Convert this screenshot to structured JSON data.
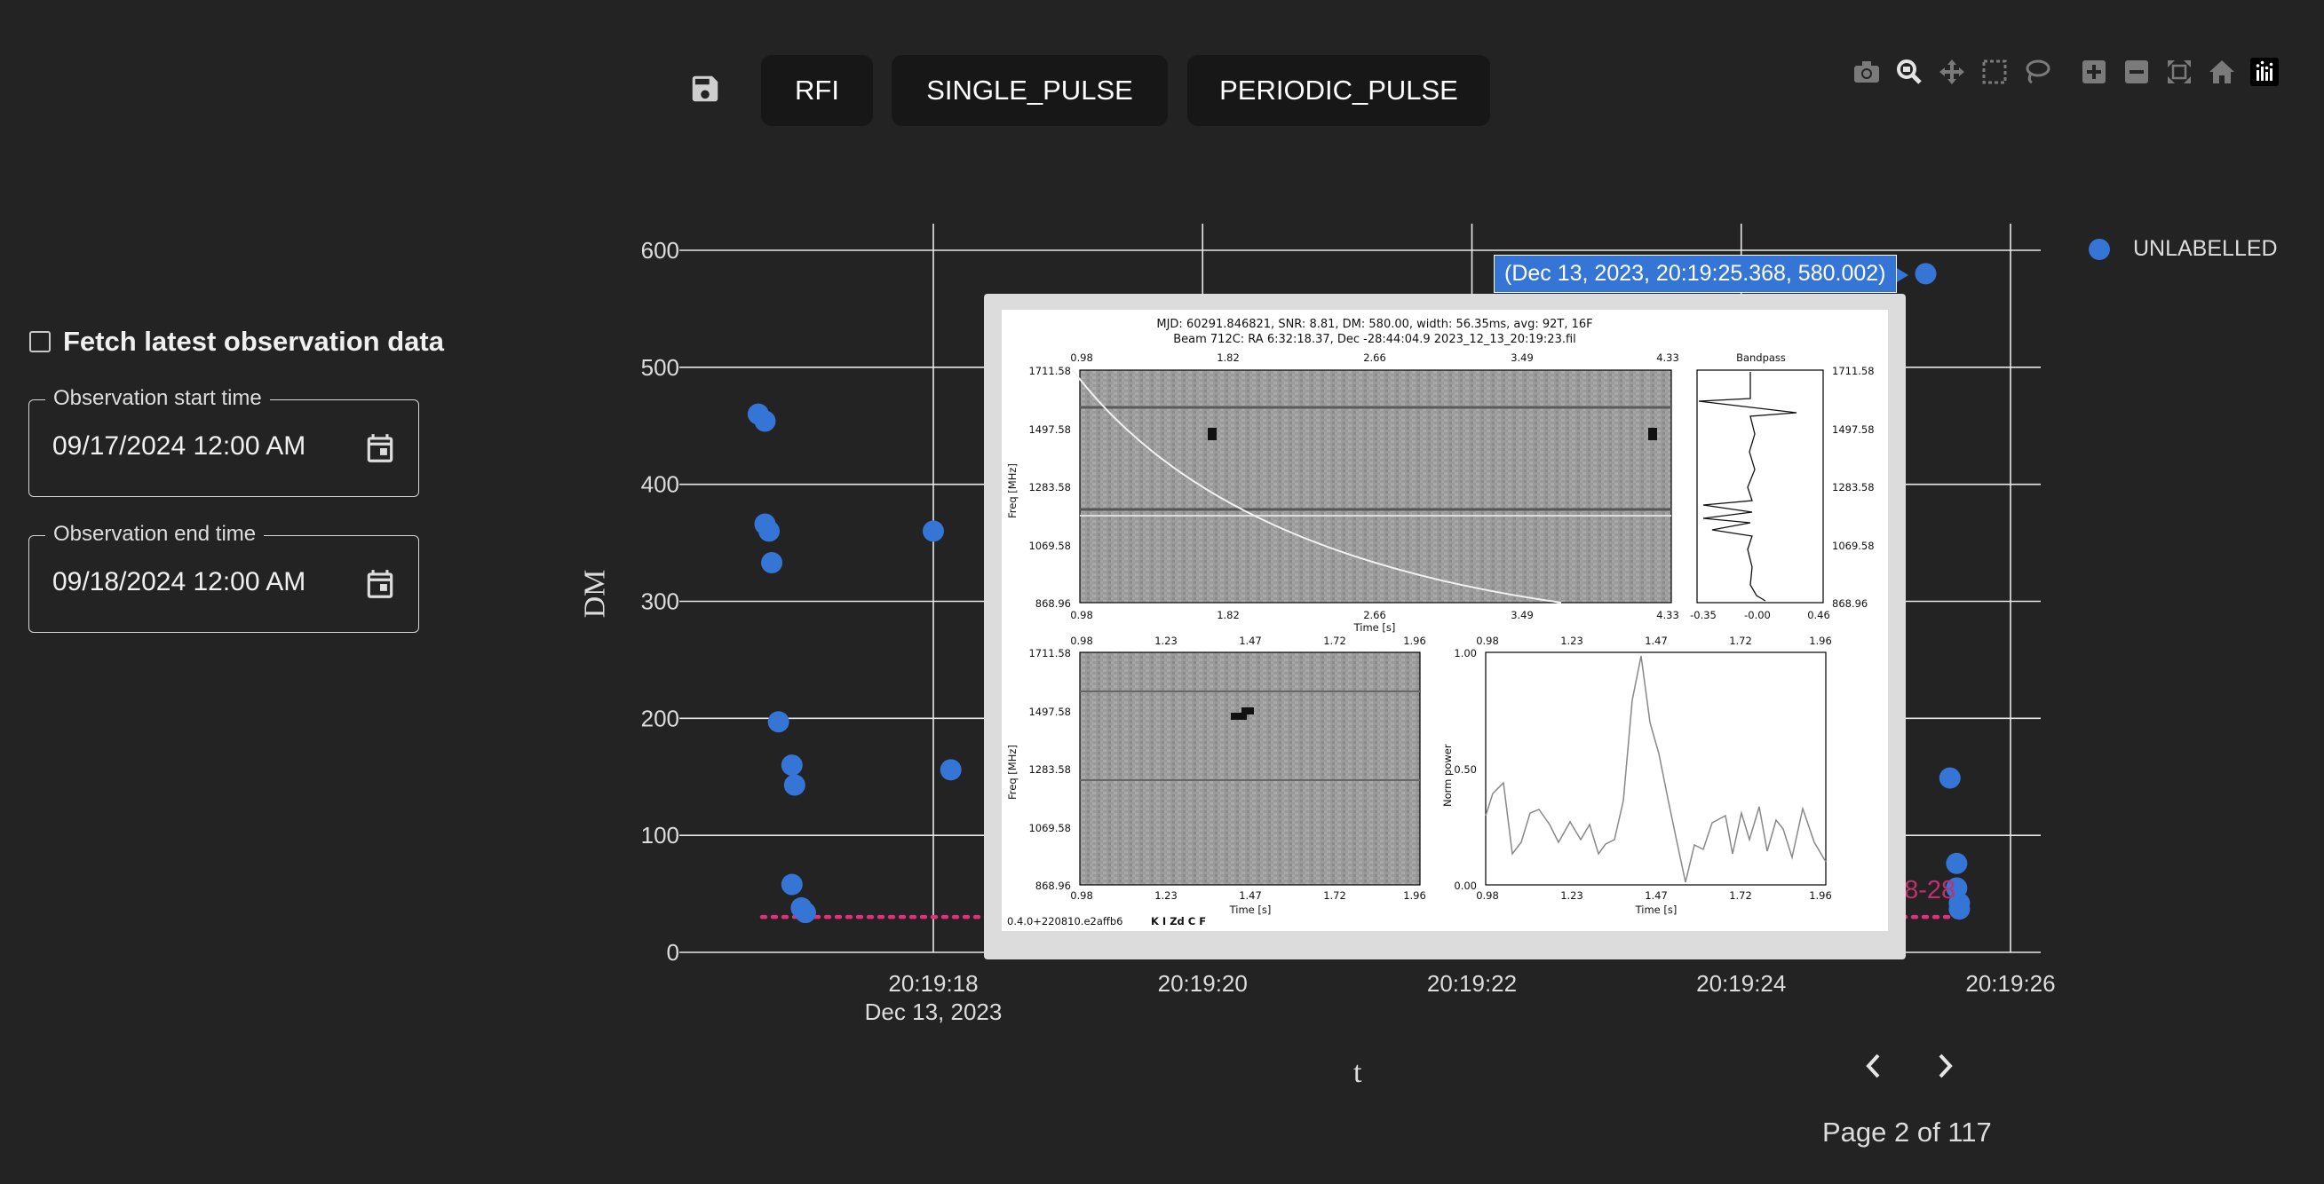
{
  "sidebar": {
    "fetch_label": "Fetch latest observation data",
    "fetch_checked": false,
    "start": {
      "legend": "Observation start time",
      "value": "09/17/2024 12:00 AM",
      "icon": "calendar-icon"
    },
    "end": {
      "legend": "Observation end time",
      "value": "09/18/2024 12:00 AM",
      "icon": "calendar-icon"
    }
  },
  "toolbar": {
    "save_icon": "floppy-disk-icon",
    "buttons": [
      "RFI",
      "SINGLE_PULSE",
      "PERIODIC_PULSE"
    ]
  },
  "modebar": [
    "camera-icon",
    "zoom-icon",
    "pan-icon",
    "box-select-icon",
    "lasso-icon",
    "zoom-in-icon",
    "zoom-out-icon",
    "autoscale-icon",
    "reset-axes-icon",
    "plotly-logo-icon"
  ],
  "plot": {
    "ylabel": "DM",
    "xlabel": "t",
    "legend": "UNLABELLED",
    "tooltip": "(Dec 13, 2023, 20:19:25.368, 580.002)",
    "annotation": "28-28",
    "marker_color": "#3575d5",
    "line_color": "#e0307a"
  },
  "chart_data": {
    "type": "scatter",
    "series": [
      {
        "name": "UNLABELLED",
        "points": [
          {
            "t": 16.7,
            "dm": 460
          },
          {
            "t": 16.75,
            "dm": 454
          },
          {
            "t": 16.75,
            "dm": 366
          },
          {
            "t": 16.78,
            "dm": 360
          },
          {
            "t": 16.8,
            "dm": 333
          },
          {
            "t": 18.0,
            "dm": 360
          },
          {
            "t": 16.85,
            "dm": 197
          },
          {
            "t": 16.95,
            "dm": 160
          },
          {
            "t": 16.97,
            "dm": 143
          },
          {
            "t": 16.95,
            "dm": 58
          },
          {
            "t": 17.02,
            "dm": 38
          },
          {
            "t": 17.05,
            "dm": 34
          },
          {
            "t": 18.13,
            "dm": 156
          },
          {
            "t": 25.37,
            "dm": 580
          },
          {
            "t": 25.55,
            "dm": 149
          },
          {
            "t": 25.6,
            "dm": 76
          },
          {
            "t": 25.6,
            "dm": 55
          },
          {
            "t": 25.62,
            "dm": 42
          },
          {
            "t": 25.62,
            "dm": 37
          }
        ]
      }
    ],
    "hline": {
      "y": 34,
      "style": "dotted"
    },
    "xticks": [
      "20:19:18",
      "20:19:20",
      "20:19:22",
      "20:19:24",
      "20:19:26"
    ],
    "xtick_sub": "Dec 13, 2023",
    "yticks": [
      0,
      100,
      200,
      300,
      400,
      500,
      600
    ],
    "xlim": [
      16.5,
      26.5
    ],
    "ylim": [
      0,
      620
    ]
  },
  "inset": {
    "header1": "MJD: 60291.846821, SNR: 8.81, DM: 580.00, width: 56.35ms, avg: 92T, 16F",
    "header2": "Beam 712C: RA 6:32:18.37, Dec -28:44:04.9      2023_12_13_20:19:23.fil",
    "top_ticks": [
      "0.98",
      "1.82",
      "2.66",
      "3.49",
      "4.33"
    ],
    "freq_ticks": [
      "1711.58",
      "1497.58",
      "1283.58",
      "1069.58",
      "868.96"
    ],
    "bandpass_title": "Bandpass",
    "bandpass_ticks": [
      "-0.35",
      "-0.00",
      "0.46"
    ],
    "small_ticks": [
      "0.98",
      "1.23",
      "1.47",
      "1.72",
      "1.96"
    ],
    "norm_ticks": [
      "1.00",
      "0.50",
      "0.00"
    ],
    "freq_label": "Freq [MHz]",
    "time_label": "Time [s]",
    "norm_label": "Norm power",
    "footer1": "0.4.0+220810.e2affb6",
    "footer2": "K I Zd C F"
  },
  "pager": {
    "prev_icon": "chevron-left-icon",
    "next_icon": "chevron-right-icon",
    "text": "Page 2 of 117"
  }
}
